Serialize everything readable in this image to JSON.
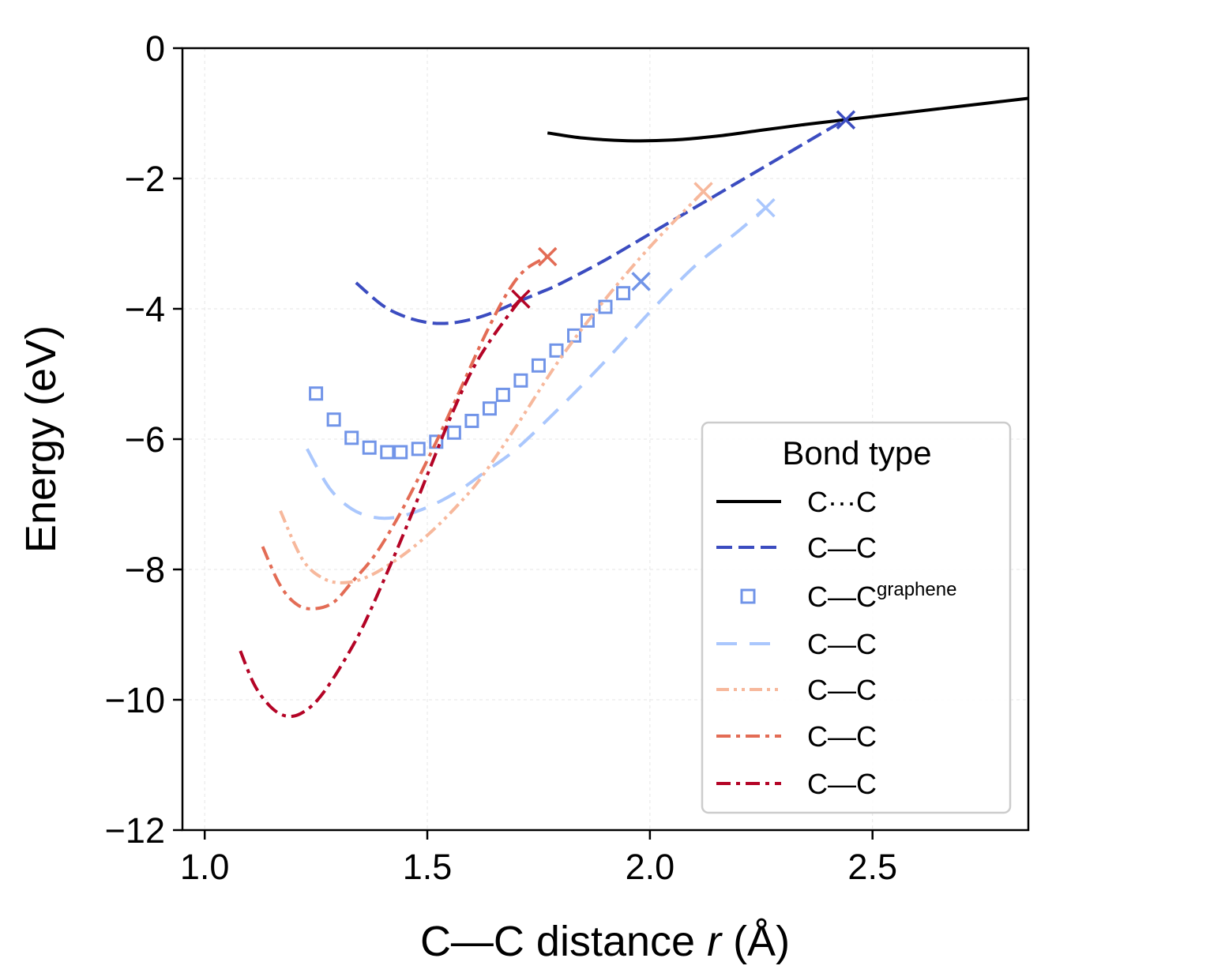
{
  "chart_data": {
    "type": "line",
    "xlabel_parts": [
      "C—C distance ",
      "r",
      " (Å)"
    ],
    "ylabel": "Energy (eV)",
    "xlim": [
      0.95,
      2.85
    ],
    "ylim": [
      -12,
      0
    ],
    "xticks": [
      1.0,
      1.5,
      2.0,
      2.5
    ],
    "xtick_labels": [
      "1.0",
      "1.5",
      "2.0",
      "2.5"
    ],
    "yticks": [
      0,
      -2,
      -4,
      -6,
      -8,
      -10,
      -12
    ],
    "ytick_labels": [
      "0",
      "−2",
      "−4",
      "−6",
      "−8",
      "−10",
      "−12"
    ],
    "grid": true,
    "legend": {
      "title": "Bond type",
      "placement": "lower-right"
    },
    "series": [
      {
        "name": "C···C",
        "label_main": "C···C",
        "label_sup": "",
        "color": "#000000",
        "style": "solid",
        "x": [
          1.77,
          1.85,
          1.95,
          2.05,
          2.15,
          2.25,
          2.35,
          2.45,
          2.55,
          2.65,
          2.75,
          2.85
        ],
        "y": [
          -1.3,
          -1.38,
          -1.42,
          -1.41,
          -1.35,
          -1.26,
          -1.17,
          -1.09,
          -1.01,
          -0.93,
          -0.85,
          -0.77
        ],
        "end_marker": false
      },
      {
        "name": "C—C",
        "label_main": "C—C",
        "label_sup": "",
        "color": "#3b4cc0",
        "style": "dashed",
        "x": [
          1.34,
          1.4,
          1.45,
          1.5,
          1.55,
          1.6,
          1.65,
          1.7,
          1.75,
          1.8,
          1.9,
          2.0,
          2.1,
          2.2,
          2.3,
          2.4,
          2.44
        ],
        "y": [
          -3.6,
          -3.95,
          -4.12,
          -4.21,
          -4.22,
          -4.16,
          -4.05,
          -3.9,
          -3.76,
          -3.61,
          -3.25,
          -2.85,
          -2.45,
          -2.05,
          -1.65,
          -1.25,
          -1.1
        ],
        "end_marker": true
      },
      {
        "name": "C—C graphene",
        "label_main": "C—C",
        "label_sup": "graphene",
        "color": "#7194e8",
        "style": "squares",
        "x": [
          1.25,
          1.29,
          1.33,
          1.37,
          1.41,
          1.44,
          1.48,
          1.52,
          1.56,
          1.6,
          1.64,
          1.67,
          1.71,
          1.75,
          1.79,
          1.83,
          1.86,
          1.9,
          1.94
        ],
        "y": [
          -5.3,
          -5.7,
          -5.98,
          -6.13,
          -6.2,
          -6.2,
          -6.15,
          -6.04,
          -5.9,
          -5.72,
          -5.53,
          -5.32,
          -5.1,
          -4.87,
          -4.64,
          -4.41,
          -4.18,
          -3.97,
          -3.76
        ],
        "end_marker_x": 1.98,
        "end_marker_y": -3.58,
        "end_marker": true
      },
      {
        "name": "C—C",
        "label_main": "C—C",
        "label_sup": "",
        "color": "#aac7fd",
        "style": "longdash",
        "x": [
          1.23,
          1.28,
          1.33,
          1.38,
          1.43,
          1.48,
          1.53,
          1.58,
          1.63,
          1.7,
          1.8,
          1.9,
          2.0,
          2.1,
          2.2,
          2.26
        ],
        "y": [
          -6.15,
          -6.75,
          -7.07,
          -7.2,
          -7.2,
          -7.1,
          -6.95,
          -6.75,
          -6.5,
          -6.15,
          -5.5,
          -4.8,
          -4.05,
          -3.35,
          -2.8,
          -2.45
        ],
        "end_marker": true
      },
      {
        "name": "C—C",
        "label_main": "C—C",
        "label_sup": "",
        "color": "#f7b89c",
        "style": "dashdotdot",
        "x": [
          1.17,
          1.22,
          1.27,
          1.32,
          1.37,
          1.42,
          1.47,
          1.52,
          1.57,
          1.62,
          1.7,
          1.8,
          1.9,
          2.0,
          2.12
        ],
        "y": [
          -7.1,
          -7.85,
          -8.15,
          -8.2,
          -8.1,
          -7.9,
          -7.65,
          -7.35,
          -7.0,
          -6.6,
          -5.8,
          -4.75,
          -3.85,
          -3.05,
          -2.2
        ],
        "end_marker": true
      },
      {
        "name": "C—C",
        "label_main": "C—C",
        "label_sup": "",
        "color": "#e36c55",
        "style": "dashdot",
        "x": [
          1.13,
          1.17,
          1.21,
          1.25,
          1.29,
          1.33,
          1.38,
          1.43,
          1.48,
          1.53,
          1.58,
          1.63,
          1.68,
          1.72,
          1.77
        ],
        "y": [
          -7.65,
          -8.25,
          -8.55,
          -8.6,
          -8.5,
          -8.2,
          -7.8,
          -7.25,
          -6.6,
          -5.9,
          -5.15,
          -4.4,
          -3.75,
          -3.4,
          -3.2
        ],
        "end_marker": true
      },
      {
        "name": "C—C",
        "label_main": "C—C",
        "label_sup": "",
        "color": "#b40426",
        "style": "dashdot",
        "x": [
          1.08,
          1.11,
          1.14,
          1.17,
          1.2,
          1.23,
          1.26,
          1.3,
          1.35,
          1.4,
          1.45,
          1.5,
          1.55,
          1.6,
          1.65,
          1.71
        ],
        "y": [
          -9.25,
          -9.75,
          -10.05,
          -10.22,
          -10.25,
          -10.15,
          -9.95,
          -9.55,
          -8.95,
          -8.2,
          -7.4,
          -6.55,
          -5.7,
          -4.95,
          -4.4,
          -3.85
        ],
        "end_marker": true
      }
    ]
  }
}
